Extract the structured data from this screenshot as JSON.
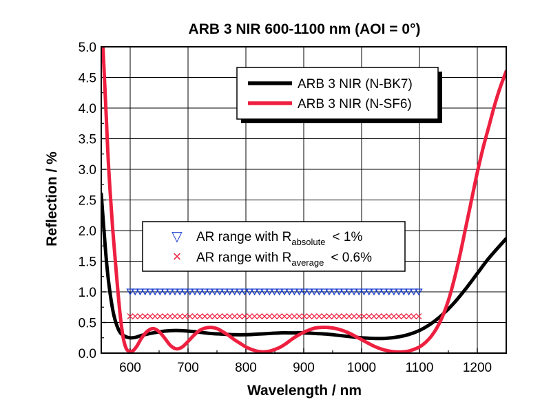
{
  "chart_data": {
    "type": "line",
    "title": "ARB 3 NIR 600-1100 nm (AOI = 0°)",
    "xlabel": "Wavelength / nm",
    "ylabel": "Reflection / %",
    "xlim": [
      550,
      1250
    ],
    "ylim": [
      0,
      5
    ],
    "xticks": [
      600,
      700,
      800,
      900,
      1000,
      1100,
      1200
    ],
    "yticks": [
      "0.0",
      "0.5",
      "1.0",
      "1.5",
      "2.0",
      "2.5",
      "3.0",
      "3.5",
      "4.0",
      "4.5",
      "5.0"
    ],
    "grid": true,
    "series": [
      {
        "name": "ARB 3 NIR (N-BK7)",
        "color": "#000000",
        "x": [
          550,
          560,
          570,
          580,
          590,
          600,
          610,
          620,
          640,
          660,
          680,
          700,
          720,
          740,
          760,
          780,
          800,
          820,
          840,
          860,
          880,
          900,
          920,
          940,
          960,
          980,
          1000,
          1020,
          1040,
          1060,
          1080,
          1100,
          1120,
          1140,
          1160,
          1180,
          1200,
          1220,
          1250
        ],
        "y": [
          2.6,
          1.4,
          0.7,
          0.38,
          0.28,
          0.25,
          0.26,
          0.29,
          0.33,
          0.36,
          0.37,
          0.36,
          0.34,
          0.32,
          0.31,
          0.3,
          0.3,
          0.31,
          0.32,
          0.33,
          0.33,
          0.33,
          0.32,
          0.31,
          0.29,
          0.27,
          0.25,
          0.24,
          0.24,
          0.26,
          0.3,
          0.37,
          0.48,
          0.63,
          0.82,
          1.05,
          1.3,
          1.55,
          1.87
        ]
      },
      {
        "name": "ARB 3 NIR (N-SF6)",
        "color": "#ee2040",
        "x": [
          553,
          558,
          563,
          570,
          577,
          583,
          588,
          593,
          598,
          605,
          612,
          620,
          630,
          640,
          650,
          660,
          670,
          680,
          690,
          700,
          710,
          720,
          730,
          740,
          750,
          760,
          770,
          780,
          790,
          800,
          810,
          820,
          830,
          840,
          850,
          860,
          870,
          880,
          890,
          900,
          910,
          920,
          930,
          940,
          950,
          960,
          970,
          980,
          990,
          1000,
          1010,
          1020,
          1030,
          1040,
          1050,
          1060,
          1070,
          1080,
          1090,
          1100,
          1110,
          1120,
          1130,
          1140,
          1150,
          1160,
          1170,
          1180,
          1190,
          1200,
          1210,
          1220,
          1230,
          1240,
          1250
        ],
        "y": [
          5.0,
          4.0,
          3.0,
          2.0,
          1.2,
          0.6,
          0.25,
          0.08,
          0.03,
          0.04,
          0.12,
          0.25,
          0.36,
          0.4,
          0.35,
          0.24,
          0.12,
          0.07,
          0.1,
          0.19,
          0.29,
          0.37,
          0.41,
          0.42,
          0.4,
          0.35,
          0.29,
          0.22,
          0.16,
          0.1,
          0.06,
          0.03,
          0.02,
          0.03,
          0.06,
          0.1,
          0.16,
          0.23,
          0.29,
          0.34,
          0.38,
          0.41,
          0.42,
          0.42,
          0.41,
          0.39,
          0.36,
          0.32,
          0.27,
          0.22,
          0.17,
          0.12,
          0.08,
          0.05,
          0.03,
          0.02,
          0.02,
          0.03,
          0.06,
          0.1,
          0.17,
          0.27,
          0.41,
          0.6,
          0.86,
          1.2,
          1.6,
          2.05,
          2.5,
          2.95,
          3.35,
          3.7,
          4.05,
          4.35,
          4.6
        ]
      },
      {
        "name": "AR range with R absolute < 1%",
        "color": "#1a3fcf",
        "marker": "▽",
        "x": [
          600,
          1100
        ],
        "y": [
          1.0,
          1.0
        ]
      },
      {
        "name": "AR range with R average < 0.6%",
        "color": "#ee2040",
        "marker": "×",
        "x": [
          600,
          1100
        ],
        "y": [
          0.6,
          0.6
        ]
      }
    ],
    "legend_lines": [
      {
        "label": "ARB 3 NIR (N-BK7)",
        "color": "#000000"
      },
      {
        "label": "ARB 3 NIR (N-SF6)",
        "color": "#ee2040"
      }
    ],
    "legend_markers": [
      {
        "prefix": "AR range with R",
        "sub": "absolute",
        "suffix": "< 1%",
        "symbol": "▽",
        "color": "#1a3fcf"
      },
      {
        "prefix": "AR range with R",
        "sub": "average",
        "suffix": "< 0.6%",
        "symbol": "×",
        "color": "#ee2040"
      }
    ]
  }
}
